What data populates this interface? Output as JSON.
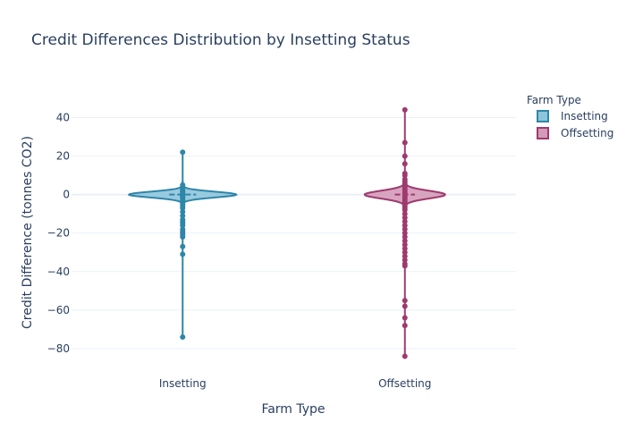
{
  "chart_data": {
    "type": "violin",
    "title": "Credit Differences Distribution by Insetting Status",
    "xlabel": "Farm Type",
    "ylabel": "Credit Difference (tonnes CO2)",
    "categories": [
      "Insetting",
      "Offsetting"
    ],
    "ylim": [
      -87,
      50
    ],
    "yticks": [
      40,
      20,
      0,
      -20,
      -40,
      -60,
      -80
    ],
    "grid": true,
    "legend": {
      "title": "Farm Type",
      "placement": "top-right"
    },
    "series": [
      {
        "name": "Insetting",
        "line_color": "#2e86a8",
        "fill_color": "#8ec4dc",
        "points": [
          22,
          5,
          4,
          3,
          2,
          1.5,
          1,
          0.5,
          0,
          -0.5,
          -1,
          -1.5,
          -2,
          -3,
          -4,
          -5,
          -6,
          -7,
          -9,
          -11,
          -13,
          -14,
          -15,
          -16,
          -18,
          -19,
          -20,
          -21,
          -22,
          -27,
          -31,
          -74
        ],
        "violin_half_width": 60,
        "violin_spread": 1.2,
        "range": [
          -75,
          22
        ]
      },
      {
        "name": "Offsetting",
        "line_color": "#9e3a6e",
        "fill_color": "#d49ab8",
        "points": [
          44,
          27,
          20,
          16,
          11,
          10,
          8,
          7,
          6,
          5,
          4,
          3,
          2,
          1,
          0,
          -1,
          -2,
          -3,
          -4,
          -5,
          -6,
          -7,
          -8,
          -10,
          -12,
          -14,
          -16,
          -18,
          -20,
          -22,
          -24,
          -26,
          -28,
          -30,
          -32,
          -34,
          -36,
          -37,
          -55,
          -58,
          -64,
          -68,
          -84
        ],
        "violin_half_width": 45,
        "violin_spread": 1.6,
        "range": [
          -85,
          45
        ]
      }
    ]
  }
}
